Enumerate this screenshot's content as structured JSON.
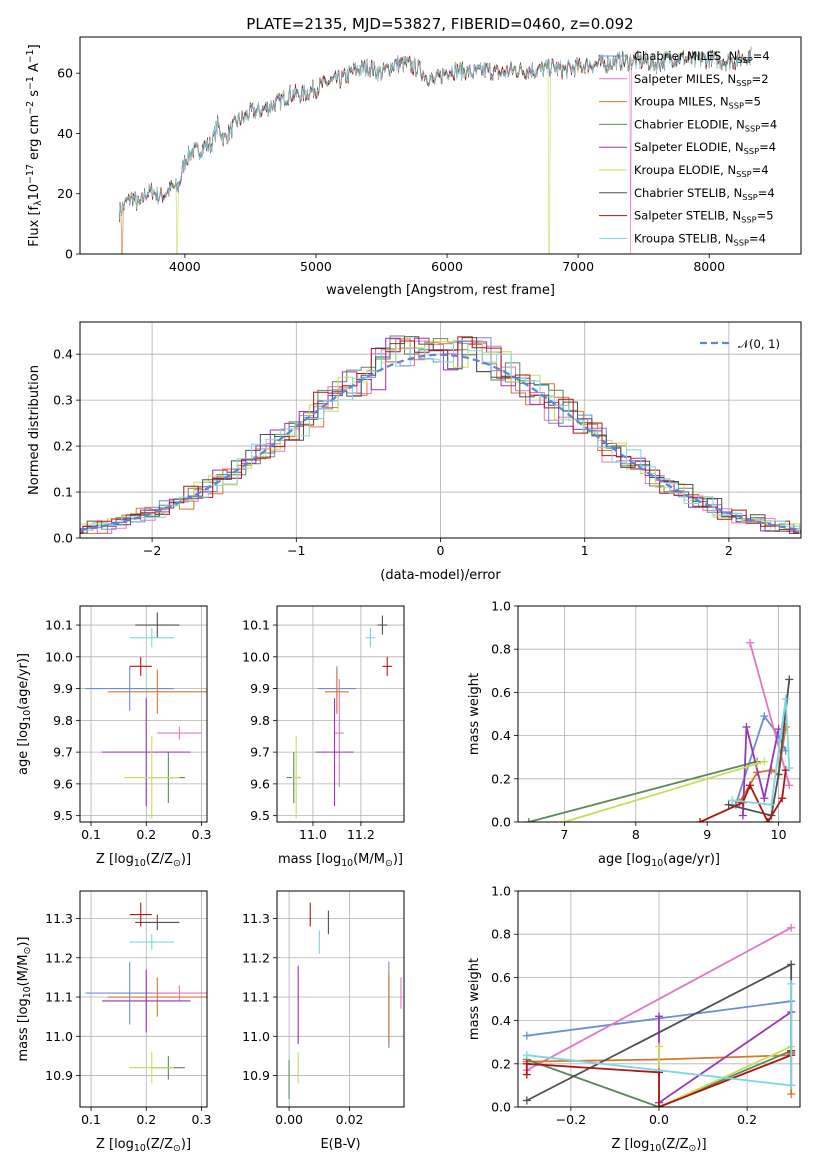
{
  "title": "PLATE=2135, MJD=53827, FIBERID=0460, z=0.092",
  "models": [
    {
      "name": "Chabrier MILES, N_SSP=4",
      "base": "Chabrier MILES, N",
      "sub": "SSP",
      "n": "=4",
      "color": "#6b8fd6"
    },
    {
      "name": "Salpeter MILES, N_SSP=2",
      "base": "Salpeter MILES, N",
      "sub": "SSP",
      "n": "=2",
      "color": "#e377c2"
    },
    {
      "name": "Kroupa MILES, N_SSP=5",
      "base": "Kroupa MILES, N",
      "sub": "SSP",
      "n": "=5",
      "color": "#d9762c"
    },
    {
      "name": "Chabrier ELODIE, N_SSP=4",
      "base": "Chabrier ELODIE, N",
      "sub": "SSP",
      "n": "=4",
      "color": "#5a8a5a"
    },
    {
      "name": "Salpeter ELODIE, N_SSP=4",
      "base": "Salpeter ELODIE, N",
      "sub": "SSP",
      "n": "=4",
      "color": "#9a34b8"
    },
    {
      "name": "Kroupa ELODIE, N_SSP=4",
      "base": "Kroupa ELODIE, N",
      "sub": "SSP",
      "n": "=4",
      "color": "#c5de5a"
    },
    {
      "name": "Chabrier STELIB, N_SSP=4",
      "base": "Chabrier STELIB, N",
      "sub": "SSP",
      "n": "=4",
      "color": "#505050"
    },
    {
      "name": "Salpeter STELIB, N_SSP=5",
      "base": "Salpeter STELIB, N",
      "sub": "SSP",
      "n": "=5",
      "color": "#b01515"
    },
    {
      "name": "Kroupa STELIB, N_SSP=4",
      "base": "Kroupa STELIB, N",
      "sub": "SSP",
      "n": "=4",
      "color": "#7fd6e0"
    }
  ],
  "chart_data": [
    {
      "id": "spectrum",
      "type": "line",
      "xlabel": "wavelength [Angstrom, rest frame]",
      "ylabel": "Flux [f_λ10^-17 erg cm^-2 s^-1 A^-1]",
      "ylabel_parts": [
        "Flux [f",
        "λ",
        "10",
        "−17",
        " erg cm",
        "−2",
        " s",
        "−1",
        " A",
        "−1",
        "]"
      ],
      "xlim": [
        3200,
        8700
      ],
      "ylim": [
        0,
        72
      ],
      "xticks": [
        4000,
        5000,
        6000,
        7000,
        8000
      ],
      "yticks": [
        0,
        20,
        40,
        60
      ],
      "legend": "top-right",
      "wavelength": [
        3500,
        3550,
        3600,
        3650,
        3700,
        3750,
        3800,
        3850,
        3900,
        3950,
        4000,
        4050,
        4100,
        4150,
        4200,
        4250,
        4300,
        4350,
        4400,
        4450,
        4500,
        4600,
        4700,
        4800,
        4900,
        5000,
        5100,
        5200,
        5300,
        5400,
        5500,
        5600,
        5700,
        5800,
        5900,
        6000,
        6100,
        6200,
        6300,
        6400,
        6500,
        6600,
        6700,
        6800,
        6900,
        7000,
        7100,
        7200,
        7300,
        7400,
        7500,
        7600,
        7700,
        7800,
        7900,
        8000,
        8100,
        8200,
        8300
      ],
      "flux": [
        14,
        17,
        19,
        16,
        20,
        21,
        19,
        20,
        22,
        22,
        31,
        34,
        34,
        36,
        36,
        43,
        38,
        41,
        44,
        45,
        47,
        48,
        50,
        53,
        53,
        55,
        57,
        58,
        61,
        62,
        60,
        63,
        63,
        61,
        57,
        61,
        61,
        60,
        61,
        60,
        61,
        61,
        61,
        62,
        61,
        62,
        63,
        63,
        64,
        64,
        64,
        63,
        65,
        65,
        64,
        65,
        64,
        64,
        66
      ],
      "dropouts": [
        {
          "model": "Salpeter MILES, N_SSP=2",
          "at": 7400
        },
        {
          "model": "Kroupa MILES, N_SSP=5",
          "at": 3520
        },
        {
          "model": "Kroupa ELODIE, N_SSP=4",
          "at": 3940
        },
        {
          "model": "Kroupa ELODIE, N_SSP=4",
          "at": 6780
        }
      ]
    },
    {
      "id": "residuals",
      "type": "step-histogram",
      "xlabel": "(data-model)/error",
      "ylabel": "Normed distribution",
      "xlim": [
        -2.5,
        2.5
      ],
      "ylim": [
        0,
        0.47
      ],
      "xticks": [
        -2,
        -1,
        0,
        1,
        2
      ],
      "yticks": [
        0.0,
        0.1,
        0.2,
        0.3,
        0.4
      ],
      "legend": "top-right",
      "reference": {
        "label": "N(0,1)",
        "label_math": "𝒩(0, 1)",
        "mean": 0,
        "sigma": 1,
        "color": "#5b86d6"
      },
      "bin_width": 0.1
    },
    {
      "id": "age_vs_Z",
      "type": "errorbar",
      "xlabel": "Z [log10(Z/Z⊙)]",
      "xlabel_parts": [
        "Z [log",
        "10",
        "(Z/Z",
        "⊙",
        ")]"
      ],
      "ylabel": "age  [log10(age/yr)]",
      "ylabel_parts": [
        "age  [log",
        "10",
        "(age/yr)]"
      ],
      "xlim": [
        0.08,
        0.31
      ],
      "ylim": [
        9.48,
        10.16
      ],
      "xticks": [
        0.1,
        0.2,
        0.3
      ],
      "yticks": [
        9.5,
        9.6,
        9.7,
        9.8,
        9.9,
        10.0,
        10.1
      ],
      "points": [
        {
          "model": 0,
          "x": 0.17,
          "y": 9.9,
          "xerr": 0.08,
          "yerr": 0.07
        },
        {
          "model": 1,
          "x": 0.26,
          "y": 9.76,
          "xerr": 0.04,
          "yerr": 0.02
        },
        {
          "model": 2,
          "x": 0.22,
          "y": 9.89,
          "xerr": 0.09,
          "yerr": 0.07
        },
        {
          "model": 3,
          "x": 0.24,
          "y": 9.62,
          "xerr": 0.03,
          "yerr": 0.08
        },
        {
          "model": 4,
          "x": 0.2,
          "y": 9.7,
          "xerr": 0.08,
          "yerr": 0.17
        },
        {
          "model": 5,
          "x": 0.21,
          "y": 9.62,
          "xerr": 0.05,
          "yerr": 0.13
        },
        {
          "model": 6,
          "x": 0.22,
          "y": 10.1,
          "xerr": 0.04,
          "yerr": 0.04
        },
        {
          "model": 7,
          "x": 0.19,
          "y": 9.97,
          "xerr": 0.02,
          "yerr": 0.03
        },
        {
          "model": 8,
          "x": 0.21,
          "y": 10.06,
          "xerr": 0.04,
          "yerr": 0.03
        }
      ]
    },
    {
      "id": "age_vs_mass",
      "type": "errorbar",
      "xlabel": "mass [log10(M/M⊙)]",
      "xlabel_parts": [
        "mass [log",
        "10",
        "(M/M",
        "⊙",
        ")]"
      ],
      "xlim": [
        10.85,
        11.38
      ],
      "ylim": [
        9.48,
        10.16
      ],
      "xticks": [
        11.0,
        11.2
      ],
      "yticks": [
        9.5,
        9.6,
        9.7,
        9.8,
        9.9,
        10.0,
        10.1
      ],
      "points": [
        {
          "model": 0,
          "x": 11.1,
          "y": 9.9,
          "xerr": 0.08,
          "yerr": 0.07
        },
        {
          "model": 1,
          "x": 11.11,
          "y": 9.76,
          "xerr": 0.02,
          "yerr": 0.17
        },
        {
          "model": 2,
          "x": 11.1,
          "y": 9.89,
          "xerr": 0.05,
          "yerr": 0.07
        },
        {
          "model": 3,
          "x": 10.92,
          "y": 9.62,
          "xerr": 0.03,
          "yerr": 0.08
        },
        {
          "model": 4,
          "x": 11.09,
          "y": 9.7,
          "xerr": 0.08,
          "yerr": 0.17
        },
        {
          "model": 5,
          "x": 10.93,
          "y": 9.62,
          "xerr": 0.02,
          "yerr": 0.13
        },
        {
          "model": 6,
          "x": 11.29,
          "y": 10.1,
          "xerr": 0.02,
          "yerr": 0.03
        },
        {
          "model": 7,
          "x": 11.31,
          "y": 9.97,
          "xerr": 0.02,
          "yerr": 0.03
        },
        {
          "model": 8,
          "x": 11.24,
          "y": 10.06,
          "xerr": 0.02,
          "yerr": 0.03
        }
      ]
    },
    {
      "id": "weight_vs_age",
      "type": "line",
      "xlabel": "age  [log10(age/yr)]",
      "xlabel_parts": [
        "age  [log",
        "10",
        "(age/yr)]"
      ],
      "ylabel": "mass weight",
      "xlim": [
        6.35,
        10.3
      ],
      "ylim": [
        0,
        1.0
      ],
      "xticks": [
        7,
        8,
        9,
        10
      ],
      "yticks": [
        0.0,
        0.2,
        0.4,
        0.6,
        0.8,
        1.0
      ],
      "series": [
        {
          "model": 0,
          "x": [
            9.4,
            9.8,
            10.0,
            10.1
          ],
          "y": [
            0.08,
            0.49,
            0.4,
            0.33
          ]
        },
        {
          "model": 1,
          "x": [
            9.6,
            10.15
          ],
          "y": [
            0.83,
            0.17
          ]
        },
        {
          "model": 2,
          "x": [
            9.45,
            9.7,
            9.9,
            10.0,
            10.1
          ],
          "y": [
            0.09,
            0.23,
            0.24,
            0.22,
            0.44
          ]
        },
        {
          "model": 3,
          "x": [
            6.5,
            9.7
          ],
          "y": [
            0.0,
            0.28
          ]
        },
        {
          "model": 4,
          "x": [
            9.5,
            9.55,
            9.8,
            10.0
          ],
          "y": [
            0.03,
            0.44,
            0.11,
            0.43
          ]
        },
        {
          "model": 5,
          "x": [
            7.0,
            9.7,
            9.8
          ],
          "y": [
            0.0,
            0.27,
            0.28
          ]
        },
        {
          "model": 6,
          "x": [
            9.3,
            9.9,
            10.0,
            10.15
          ],
          "y": [
            0.08,
            0.03,
            0.22,
            0.66
          ]
        },
        {
          "model": 7,
          "x": [
            8.9,
            9.5,
            9.6,
            9.85,
            10.05,
            10.1
          ],
          "y": [
            0.0,
            0.09,
            0.17,
            0.0,
            0.11,
            0.24
          ]
        },
        {
          "model": 8,
          "x": [
            9.35,
            9.9,
            10.1,
            10.15
          ],
          "y": [
            0.1,
            0.08,
            0.57,
            0.25
          ]
        }
      ]
    },
    {
      "id": "mass_vs_Z",
      "type": "errorbar",
      "xlabel": "Z [log10(Z/Z⊙)]",
      "xlabel_parts": [
        "Z [log",
        "10",
        "(Z/Z",
        "⊙",
        ")]"
      ],
      "ylabel": "mass [log10(M/M⊙)]",
      "ylabel_parts": [
        "mass [log",
        "10",
        "(M/M",
        "⊙",
        ")]"
      ],
      "xlim": [
        0.08,
        0.31
      ],
      "ylim": [
        10.82,
        11.37
      ],
      "xticks": [
        0.1,
        0.2,
        0.3
      ],
      "yticks": [
        10.9,
        11.0,
        11.1,
        11.2,
        11.3
      ],
      "points": [
        {
          "model": 0,
          "x": 0.17,
          "y": 11.11,
          "xerr": 0.08,
          "yerr": 0.08
        },
        {
          "model": 1,
          "x": 0.26,
          "y": 11.11,
          "xerr": 0.05,
          "yerr": 0.02
        },
        {
          "model": 2,
          "x": 0.22,
          "y": 11.1,
          "xerr": 0.09,
          "yerr": 0.05
        },
        {
          "model": 3,
          "x": 0.24,
          "y": 10.92,
          "xerr": 0.03,
          "yerr": 0.03
        },
        {
          "model": 4,
          "x": 0.2,
          "y": 11.09,
          "xerr": 0.08,
          "yerr": 0.08
        },
        {
          "model": 5,
          "x": 0.21,
          "y": 10.92,
          "xerr": 0.04,
          "yerr": 0.04
        },
        {
          "model": 6,
          "x": 0.22,
          "y": 11.29,
          "xerr": 0.04,
          "yerr": 0.02
        },
        {
          "model": 7,
          "x": 0.19,
          "y": 11.31,
          "xerr": 0.02,
          "yerr": 0.03
        },
        {
          "model": 8,
          "x": 0.21,
          "y": 11.24,
          "xerr": 0.04,
          "yerr": 0.02
        }
      ]
    },
    {
      "id": "mass_vs_ebv",
      "type": "errorbar",
      "xlabel": "E(B-V)",
      "xlim": [
        -0.004,
        0.038
      ],
      "ylim": [
        10.82,
        11.37
      ],
      "xticks": [
        0.0,
        0.02
      ],
      "yticks": [
        10.9,
        11.0,
        11.1,
        11.2,
        11.3
      ],
      "points": [
        {
          "model": 0,
          "x": 0.033,
          "y": 11.08,
          "xerr": 0,
          "yerr": 0.11
        },
        {
          "model": 1,
          "x": 0.037,
          "y": 11.11,
          "xerr": 0,
          "yerr": 0.04
        },
        {
          "model": 2,
          "x": 0.033,
          "y": 11.07,
          "xerr": 0,
          "yerr": 0.09
        },
        {
          "model": 3,
          "x": 0.0,
          "y": 10.89,
          "xerr": 0,
          "yerr": 0.05
        },
        {
          "model": 4,
          "x": 0.003,
          "y": 11.08,
          "xerr": 0,
          "yerr": 0.1
        },
        {
          "model": 5,
          "x": 0.003,
          "y": 10.92,
          "xerr": 0,
          "yerr": 0.04
        },
        {
          "model": 6,
          "x": 0.013,
          "y": 11.29,
          "xerr": 0,
          "yerr": 0.03
        },
        {
          "model": 7,
          "x": 0.007,
          "y": 11.31,
          "xerr": 0,
          "yerr": 0.03
        },
        {
          "model": 8,
          "x": 0.01,
          "y": 11.24,
          "xerr": 0,
          "yerr": 0.03
        }
      ]
    },
    {
      "id": "weight_vs_Z",
      "type": "line",
      "xlabel": "Z [log10(Z/Z⊙)]",
      "xlabel_parts": [
        "Z [log",
        "10",
        "(Z/Z",
        "⊙",
        ")]"
      ],
      "ylabel": "mass weight",
      "xlim": [
        -0.32,
        0.32
      ],
      "ylim": [
        0,
        1.0
      ],
      "xticks": [
        -0.2,
        0.0,
        0.2
      ],
      "yticks": [
        0.0,
        0.2,
        0.4,
        0.6,
        0.8,
        1.0
      ],
      "series": [
        {
          "model": 0,
          "x": [
            -0.3,
            0.0,
            0.3,
            0.3
          ],
          "y": [
            0.33,
            0.41,
            0.49,
            0.1
          ]
        },
        {
          "model": 1,
          "x": [
            -0.3,
            0.3
          ],
          "y": [
            0.17,
            0.83
          ]
        },
        {
          "model": 2,
          "x": [
            -0.3,
            0.0,
            0.3,
            0.3
          ],
          "y": [
            0.21,
            0.22,
            0.24,
            0.06
          ]
        },
        {
          "model": 3,
          "x": [
            -0.3,
            0.0,
            0.3
          ],
          "y": [
            0.22,
            0.0,
            0.26
          ]
        },
        {
          "model": 4,
          "x": [
            0.0,
            0.0,
            0.3
          ],
          "y": [
            0.42,
            0.02,
            0.44
          ]
        },
        {
          "model": 5,
          "x": [
            0.0,
            0.0,
            0.3
          ],
          "y": [
            0.28,
            0.0,
            0.28
          ]
        },
        {
          "model": 6,
          "x": [
            -0.3,
            0.3,
            0.3
          ],
          "y": [
            0.03,
            0.66,
            0.25
          ]
        },
        {
          "model": 7,
          "x": [
            -0.3,
            -0.3,
            0.0,
            0.0,
            0.3,
            0.3
          ],
          "y": [
            0.15,
            0.2,
            0.16,
            0.0,
            0.24,
            0.26
          ]
        },
        {
          "model": 8,
          "x": [
            -0.3,
            0.3,
            0.3
          ],
          "y": [
            0.24,
            0.1,
            0.57
          ]
        }
      ]
    }
  ]
}
